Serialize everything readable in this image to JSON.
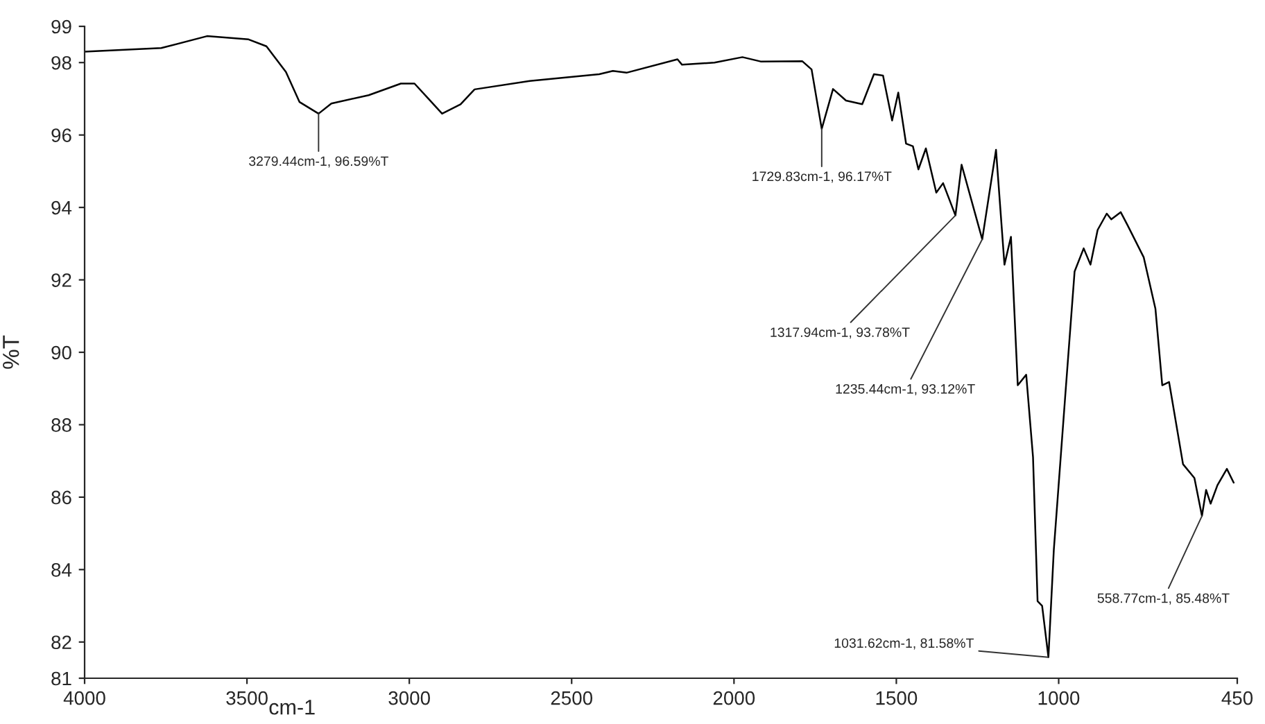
{
  "chart_data": {
    "type": "line",
    "xlabel": "cm-1",
    "ylabel": "%T",
    "xlim": [
      4000,
      450
    ],
    "ylim": [
      81,
      99
    ],
    "xticks": [
      4000,
      3500,
      3000,
      2500,
      2000,
      1500,
      1000,
      450
    ],
    "yticks": [
      81,
      82,
      84,
      86,
      88,
      90,
      92,
      94,
      96,
      98,
      99
    ],
    "grid": false,
    "marker": "none",
    "line_style": "solid",
    "series": [
      {
        "color": "#000000",
        "x": [
          4000,
          3764,
          3623,
          3495,
          3440,
          3380,
          3338,
          3279.44,
          3240,
          3125,
          3026,
          2984,
          2941,
          2899,
          2842,
          2799,
          2629,
          2415,
          2373,
          2331,
          2174,
          2160,
          2060,
          1974,
          1918,
          1790,
          1761,
          1729.83,
          1695,
          1655,
          1605,
          1569,
          1541,
          1513,
          1494,
          1470,
          1449,
          1432,
          1409,
          1377,
          1356,
          1317.94,
          1299,
          1235.44,
          1193,
          1167,
          1147,
          1126,
          1100,
          1079,
          1065,
          1051,
          1031.62,
          1015,
          980,
          951,
          923,
          902,
          880,
          852,
          838,
          809,
          788,
          738,
          702,
          681,
          660,
          617,
          582,
          558.77,
          546,
          532,
          511,
          482,
          461
        ],
        "values": [
          98.3,
          98.4,
          98.73,
          98.64,
          98.45,
          97.74,
          96.91,
          96.59,
          96.87,
          97.1,
          97.42,
          97.42,
          97.0,
          96.59,
          96.85,
          97.26,
          97.49,
          97.68,
          97.77,
          97.72,
          98.09,
          97.94,
          98.0,
          98.15,
          98.03,
          98.04,
          97.81,
          96.17,
          97.27,
          96.95,
          96.85,
          97.68,
          97.64,
          96.4,
          97.17,
          95.76,
          95.69,
          95.05,
          95.63,
          94.41,
          94.67,
          93.78,
          95.18,
          93.12,
          95.59,
          92.42,
          93.19,
          89.09,
          89.38,
          87.1,
          83.13,
          83.0,
          81.58,
          84.54,
          88.77,
          92.23,
          92.87,
          92.42,
          93.38,
          93.83,
          93.67,
          93.87,
          93.51,
          92.62,
          91.2,
          89.09,
          89.18,
          86.91,
          86.53,
          85.48,
          86.2,
          85.82,
          86.33,
          86.78,
          86.4
        ]
      }
    ],
    "annotations": [
      {
        "text": "3279.44cm-1, 96.59%T",
        "x": 3279.44,
        "y": 96.59
      },
      {
        "text": "1729.83cm-1, 96.17%T",
        "x": 1729.83,
        "y": 96.17
      },
      {
        "text": "1317.94cm-1, 93.78%T",
        "x": 1317.94,
        "y": 93.78
      },
      {
        "text": "1235.44cm-1, 93.12%T",
        "x": 1235.44,
        "y": 93.12
      },
      {
        "text": "1031.62cm-1, 81.58%T",
        "x": 1031.62,
        "y": 81.58
      },
      {
        "text": "558.77cm-1, 85.48%T",
        "x": 558.77,
        "y": 85.48
      }
    ]
  }
}
